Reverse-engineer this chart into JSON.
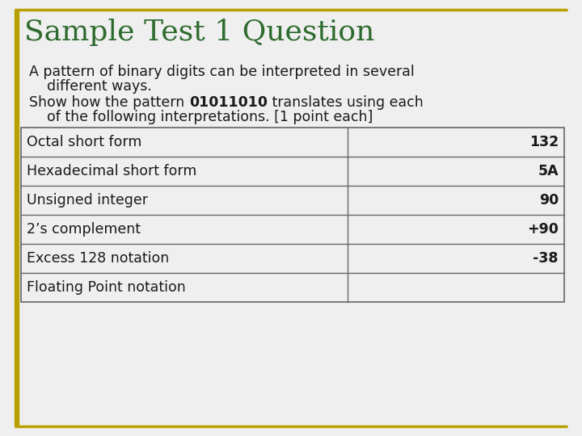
{
  "title": "Sample Test 1 Question",
  "title_color": "#2E6B2E",
  "title_fontsize": 26,
  "body_text_line1": "A pattern of binary digits can be interpreted in several",
  "body_text_line2": "    different ways.",
  "body_text_line3_pre": "Show how the pattern ",
  "body_text_bold": "01011010",
  "body_text_line3_post": " translates using each",
  "body_text_line4": "    of the following interpretations. [1 point each]",
  "table_rows": [
    {
      "label": "Octal short form",
      "value": "132",
      "value_bold": true
    },
    {
      "label": "Hexadecimal short form",
      "value": "5A",
      "value_bold": true
    },
    {
      "label": "Unsigned integer",
      "value": "90",
      "value_bold": true
    },
    {
      "label": "2’s complement",
      "value": "+90",
      "value_bold": true
    },
    {
      "label": "Excess 128 notation",
      "value": "-38",
      "value_bold": true
    },
    {
      "label": "Floating Point notation",
      "value": "",
      "value_bold": false
    }
  ],
  "border_color": "#B8A000",
  "table_border_color": "#666666",
  "bg_color": "#EFEFEF",
  "text_color": "#1a1a1a",
  "body_fontsize": 12.5,
  "table_fontsize": 12.5
}
